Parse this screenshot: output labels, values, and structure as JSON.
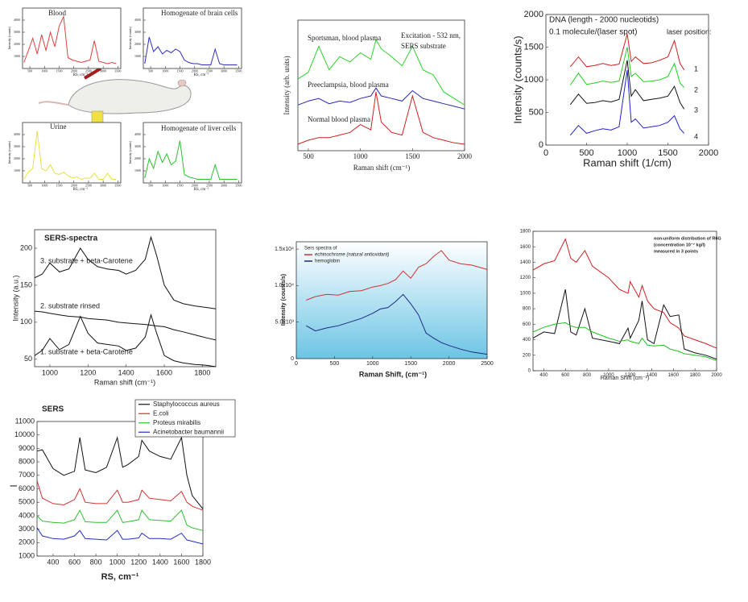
{
  "chart_data": [
    {
      "type": "line",
      "title": "Blood",
      "x_label": "RS, cm⁻¹",
      "y_label": "Intensity (counts)",
      "xlim": [
        250,
        3600
      ],
      "xticks": [
        500,
        1000,
        1500,
        2000,
        2500,
        3000,
        3500
      ],
      "ylim": [
        0,
        5000
      ],
      "yticks": [
        1000,
        2000,
        3000,
        4000
      ],
      "x": [
        300,
        450,
        600,
        750,
        900,
        1050,
        1200,
        1350,
        1500,
        1650,
        1800,
        1950,
        2100,
        2250,
        2400,
        2550,
        2700,
        2850,
        3000,
        3150,
        3300,
        3450
      ],
      "series": [
        {
          "color": "#e04040",
          "values": [
            500,
            1500,
            2500,
            1200,
            2800,
            1500,
            3000,
            1800,
            3500,
            4300,
            900,
            700,
            600,
            500,
            600,
            700,
            2300,
            600,
            500,
            400,
            500,
            400
          ]
        }
      ]
    },
    {
      "type": "line",
      "title": "Homogenate of brain cells",
      "x_label": "RS, cm⁻¹",
      "y_label": "Intensity (counts)",
      "xlim": [
        250,
        3600
      ],
      "xticks": [
        500,
        1000,
        1500,
        2000,
        2500,
        3000,
        3500
      ],
      "ylim": [
        0,
        5000
      ],
      "yticks": [
        1000,
        2000,
        3000,
        4000
      ],
      "x": [
        300,
        450,
        600,
        750,
        900,
        1050,
        1200,
        1350,
        1500,
        1650,
        1800,
        1950,
        2100,
        2250,
        2400,
        2550,
        2700,
        2850,
        3000,
        3150,
        3300,
        3450
      ],
      "series": [
        {
          "color": "#3030c0",
          "values": [
            400,
            2600,
            1400,
            1800,
            1200,
            1500,
            1300,
            1600,
            1400,
            700,
            500,
            400,
            400,
            300,
            300,
            300,
            1600,
            400,
            300,
            300,
            300,
            300
          ]
        }
      ]
    },
    {
      "type": "line",
      "title": "Urine",
      "x_label": "RS, cm⁻¹",
      "y_label": "Intensity (counts)",
      "xlim": [
        250,
        3600
      ],
      "xticks": [
        500,
        1000,
        1500,
        2000,
        2500,
        3000,
        3500
      ],
      "ylim": [
        0,
        5000
      ],
      "yticks": [
        1000,
        2000,
        3000,
        4000
      ],
      "x": [
        300,
        450,
        600,
        750,
        900,
        1050,
        1200,
        1350,
        1500,
        1650,
        1800,
        1950,
        2100,
        2250,
        2400,
        2550,
        2700,
        2850,
        3000,
        3150,
        3300,
        3450
      ],
      "series": [
        {
          "color": "#e8e040",
          "values": [
            300,
            900,
            1200,
            4300,
            1200,
            1000,
            1500,
            800,
            700,
            900,
            600,
            400,
            500,
            300,
            400,
            400,
            800,
            300,
            300,
            800,
            300,
            300
          ]
        }
      ]
    },
    {
      "type": "line",
      "title": "Homogenate of liver cells",
      "x_label": "RS, cm⁻¹",
      "y_label": "Intensity (counts)",
      "xlim": [
        250,
        3600
      ],
      "xticks": [
        500,
        1000,
        1500,
        2000,
        2500,
        3000,
        3500
      ],
      "ylim": [
        0,
        5000
      ],
      "yticks": [
        1000,
        2000,
        3000,
        4000
      ],
      "x": [
        300,
        450,
        600,
        750,
        900,
        1050,
        1200,
        1350,
        1500,
        1650,
        1800,
        1950,
        2100,
        2250,
        2400,
        2550,
        2700,
        2850,
        3000,
        3150,
        3300,
        3450
      ],
      "series": [
        {
          "color": "#30c030",
          "values": [
            400,
            2000,
            1200,
            2600,
            1700,
            2400,
            1500,
            1800,
            3500,
            700,
            500,
            400,
            300,
            300,
            300,
            300,
            1500,
            300,
            300,
            300,
            300,
            300
          ]
        }
      ]
    },
    {
      "type": "line",
      "x_label": "Raman shift (cm⁻¹)",
      "y_label": "Intensity (arb. units)",
      "legend": "inline",
      "annotations": [
        "Excitation - 532 nm,",
        "SERS substrate"
      ],
      "xlim": [
        400,
        2000
      ],
      "xticks": [
        500,
        1000,
        1500,
        2000
      ],
      "ylim": [
        0,
        100
      ],
      "x": [
        400,
        500,
        600,
        700,
        800,
        900,
        1000,
        1100,
        1150,
        1200,
        1300,
        1400,
        1500,
        1600,
        1700,
        1800,
        1900,
        2000
      ],
      "series": [
        {
          "name": "Sportsman, blood plasma",
          "color": "#30d030",
          "values": [
            55,
            60,
            80,
            62,
            72,
            68,
            75,
            70,
            85,
            78,
            72,
            65,
            80,
            62,
            58,
            45,
            40,
            35
          ]
        },
        {
          "name": "Preeclampsia, blood plasma",
          "color": "#2828b0",
          "values": [
            35,
            38,
            40,
            36,
            38,
            37,
            40,
            42,
            48,
            42,
            40,
            38,
            46,
            40,
            38,
            36,
            34,
            32
          ]
        },
        {
          "name": "Normal blood plasma",
          "color": "#d02020",
          "values": [
            5,
            8,
            10,
            10,
            12,
            14,
            20,
            16,
            45,
            22,
            14,
            12,
            42,
            14,
            10,
            8,
            6,
            5
          ]
        }
      ]
    },
    {
      "type": "line",
      "x_label": "Raman shift (1/cm)",
      "y_label": "Intensity (counts/s)",
      "legend": "inline",
      "annotations": [
        "DNA (length - 2000 nucleotids)",
        "0.1 molecule/(laser spot)",
        "laser position:"
      ],
      "xlim": [
        0,
        2000
      ],
      "xticks": [
        0,
        500,
        1000,
        1500,
        2000
      ],
      "ylim": [
        0,
        2000
      ],
      "yticks": [
        0,
        500,
        1000,
        1500,
        2000
      ],
      "x": [
        300,
        400,
        500,
        600,
        700,
        800,
        900,
        1000,
        1050,
        1100,
        1200,
        1300,
        1400,
        1500,
        1580,
        1650,
        1700
      ],
      "series": [
        {
          "name": "1",
          "color": "#d02020",
          "values": [
            1200,
            1350,
            1200,
            1220,
            1250,
            1220,
            1240,
            1700,
            1280,
            1350,
            1250,
            1260,
            1300,
            1350,
            1600,
            1250,
            1150
          ]
        },
        {
          "name": "2",
          "color": "#20d020",
          "values": [
            920,
            1100,
            930,
            950,
            980,
            960,
            980,
            1500,
            1050,
            1100,
            970,
            980,
            1000,
            1050,
            1250,
            950,
            880
          ]
        },
        {
          "name": "3",
          "color": "#111111",
          "values": [
            620,
            780,
            640,
            650,
            680,
            660,
            700,
            1300,
            750,
            850,
            680,
            700,
            720,
            750,
            900,
            650,
            550
          ]
        },
        {
          "name": "4",
          "color": "#2020d0",
          "values": [
            150,
            300,
            180,
            220,
            250,
            230,
            280,
            1150,
            350,
            400,
            260,
            280,
            300,
            350,
            450,
            250,
            180
          ]
        }
      ]
    },
    {
      "type": "line",
      "title": "SERS-spectra",
      "x_label": "Raman shift (cm⁻¹)",
      "y_label": "Intensity (a.u.)",
      "legend": "inline",
      "xlim": [
        920,
        1870
      ],
      "xticks": [
        1000,
        1200,
        1400,
        1600,
        1800
      ],
      "ylim": [
        40,
        225
      ],
      "yticks": [
        50,
        100,
        150,
        200
      ],
      "x": [
        920,
        960,
        1000,
        1050,
        1100,
        1160,
        1200,
        1250,
        1300,
        1360,
        1400,
        1450,
        1500,
        1530,
        1560,
        1600,
        1650,
        1700,
        1760,
        1820,
        1870
      ],
      "series": [
        {
          "name": "3. substrate + beta-Carotene",
          "color": "#111111",
          "values": [
            160,
            165,
            180,
            168,
            172,
            200,
            185,
            175,
            172,
            170,
            165,
            170,
            185,
            215,
            190,
            150,
            130,
            125,
            122,
            120,
            118
          ]
        },
        {
          "name": "2. substrate rinsed",
          "color": "#111111",
          "values": [
            115,
            114,
            112,
            110,
            108,
            107,
            105,
            104,
            103,
            100,
            99,
            98,
            97,
            96,
            95,
            94,
            90,
            87,
            83,
            79,
            76
          ]
        },
        {
          "name": "1. substrate + beta-Carotene",
          "color": "#111111",
          "values": [
            55,
            62,
            78,
            63,
            70,
            108,
            85,
            72,
            70,
            68,
            62,
            65,
            80,
            110,
            85,
            55,
            48,
            45,
            43,
            42,
            40
          ]
        }
      ]
    },
    {
      "type": "line",
      "x_label": "Raman Shift, (cm⁻¹)",
      "y_label": "Intensity (counts/s)",
      "legend": "upper left",
      "annotations": [
        "Sers spectra of"
      ],
      "xlim": [
        0,
        2500
      ],
      "xticks": [
        0,
        500,
        1000,
        1500,
        2000,
        2500
      ],
      "ylim": [
        0,
        16000
      ],
      "yticks": [
        0,
        {
          "value": 5000,
          "label": "5.0x10³"
        },
        {
          "value": 10000,
          "label": "1.0x10⁴"
        },
        {
          "value": 15000,
          "label": "1.5x10⁴"
        }
      ],
      "x": [
        130,
        250,
        400,
        550,
        700,
        850,
        1000,
        1100,
        1200,
        1300,
        1400,
        1500,
        1600,
        1700,
        1800,
        1900,
        2000,
        2150,
        2300,
        2500
      ],
      "series": [
        {
          "name": "echinochrome (natural antioxidant)",
          "color": "#d03030",
          "values": [
            8000,
            8500,
            8800,
            8700,
            9200,
            9300,
            9800,
            10000,
            10300,
            10800,
            12000,
            11000,
            12500,
            13000,
            14000,
            14800,
            13500,
            13000,
            12800,
            12200
          ]
        },
        {
          "name": "hemoglobin",
          "color": "#1a2a80",
          "values": [
            4500,
            3800,
            4200,
            4500,
            5000,
            5500,
            6200,
            6800,
            7000,
            7800,
            8800,
            7500,
            6000,
            3500,
            2800,
            2200,
            1800,
            1300,
            900,
            600
          ]
        }
      ]
    },
    {
      "type": "line",
      "x_label": "Raman Shift (cm⁻¹)",
      "annotations": [
        "non-uniform distribution of R6G",
        "(concentration 10⁻⁷ kg/l)",
        "measured in 3 points"
      ],
      "xlim": [
        300,
        2000
      ],
      "xticks": [
        400,
        600,
        800,
        1000,
        1200,
        1400,
        1600,
        1800,
        2000
      ],
      "ylim": [
        0,
        1800
      ],
      "yticks": [
        0,
        200,
        400,
        600,
        800,
        1000,
        1200,
        1400,
        1600,
        1800
      ],
      "x": [
        300,
        400,
        500,
        600,
        650,
        700,
        780,
        850,
        1000,
        1100,
        1180,
        1200,
        1280,
        1310,
        1360,
        1420,
        1510,
        1570,
        1650,
        1700,
        1800,
        1900,
        2000
      ],
      "series": [
        {
          "color": "#d02020",
          "values": [
            1300,
            1380,
            1420,
            1700,
            1450,
            1400,
            1550,
            1350,
            1200,
            1050,
            1000,
            1150,
            950,
            1100,
            900,
            800,
            750,
            620,
            550,
            450,
            400,
            350,
            290
          ]
        },
        {
          "color": "#111111",
          "values": [
            420,
            500,
            480,
            1050,
            500,
            460,
            800,
            420,
            380,
            350,
            550,
            420,
            650,
            900,
            400,
            350,
            850,
            700,
            720,
            280,
            230,
            200,
            150
          ]
        },
        {
          "color": "#20c020",
          "values": [
            500,
            560,
            600,
            620,
            580,
            560,
            560,
            500,
            420,
            380,
            400,
            380,
            350,
            420,
            330,
            320,
            330,
            280,
            250,
            220,
            200,
            180,
            130
          ]
        }
      ]
    },
    {
      "type": "line",
      "title": "SERS",
      "x_label": "RS, cm⁻¹",
      "y_label": "I",
      "legend": "upper right",
      "xlim": [
        250,
        1800
      ],
      "xticks": [
        400,
        600,
        800,
        1000,
        1200,
        1400,
        1600,
        1800
      ],
      "ylim": [
        1000,
        11000
      ],
      "yticks": [
        1000,
        2000,
        3000,
        4000,
        5000,
        6000,
        7000,
        8000,
        9000,
        10000,
        11000
      ],
      "x": [
        250,
        300,
        400,
        500,
        600,
        650,
        700,
        800,
        900,
        1000,
        1050,
        1100,
        1200,
        1230,
        1300,
        1400,
        1500,
        1600,
        1650,
        1700,
        1800
      ],
      "series": [
        {
          "name": "Staphylococcus aureus",
          "color": "#111111",
          "values": [
            8800,
            8900,
            7500,
            7000,
            7300,
            9800,
            7400,
            7200,
            7600,
            9800,
            7600,
            7800,
            8400,
            9600,
            8800,
            8400,
            8200,
            9800,
            7000,
            5500,
            4500
          ]
        },
        {
          "name": "E.coli",
          "color": "#d03030",
          "values": [
            6600,
            5300,
            4900,
            4800,
            5200,
            6000,
            5000,
            4900,
            4900,
            5900,
            5000,
            5000,
            5200,
            5900,
            5300,
            5200,
            5100,
            5800,
            5000,
            4700,
            4400
          ]
        },
        {
          "name": "Proteus mirabilis",
          "color": "#30c030",
          "values": [
            4000,
            3600,
            3500,
            3450,
            3700,
            4400,
            3550,
            3500,
            3500,
            4400,
            3500,
            3550,
            3700,
            4400,
            3700,
            3650,
            3600,
            4400,
            3300,
            3100,
            2900
          ]
        },
        {
          "name": "Acinetobacter baumannii",
          "color": "#2030c0",
          "values": [
            3100,
            2500,
            2300,
            2250,
            2500,
            2900,
            2300,
            2250,
            2200,
            2900,
            2250,
            2250,
            2350,
            2700,
            2300,
            2300,
            2250,
            2700,
            2200,
            2100,
            1900
          ]
        }
      ]
    }
  ]
}
